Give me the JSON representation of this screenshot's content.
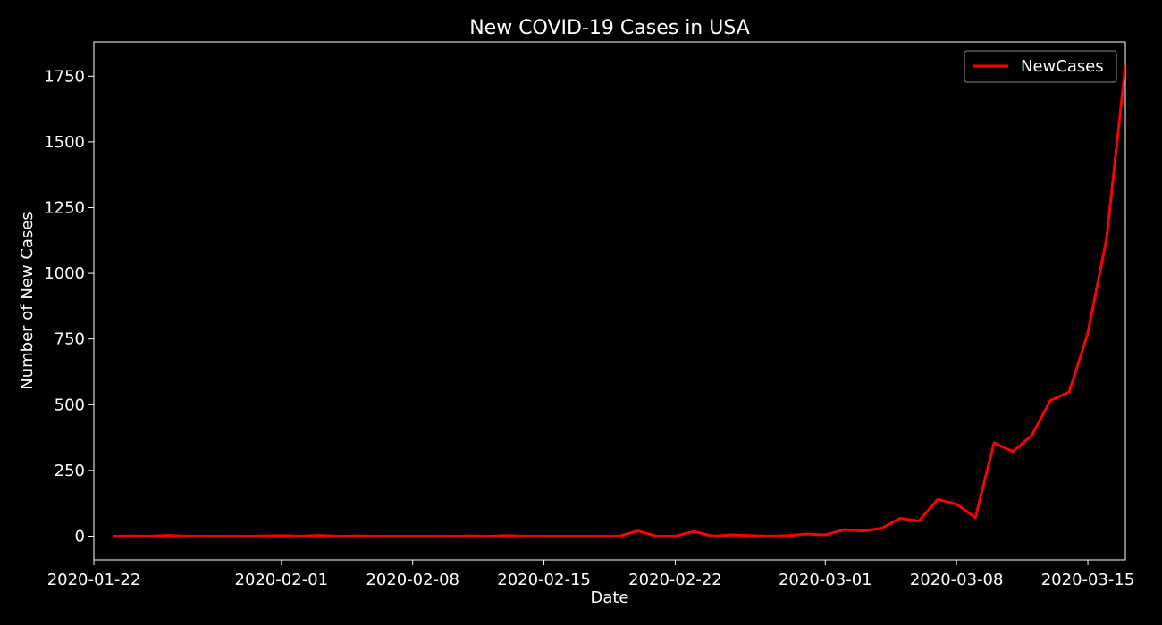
{
  "chart_data": {
    "type": "line",
    "title": "New COVID-19 Cases in USA",
    "xlabel": "Date",
    "ylabel": "Number of New Cases",
    "xlim": [
      "2020-01-22",
      "2020-03-17"
    ],
    "ylim": [
      -90,
      1880
    ],
    "x_ticks": [
      "2020-01-22",
      "2020-02-01",
      "2020-02-08",
      "2020-02-15",
      "2020-02-22",
      "2020-03-01",
      "2020-03-08",
      "2020-03-15"
    ],
    "y_ticks": [
      0,
      250,
      500,
      750,
      1000,
      1250,
      1500,
      1750
    ],
    "legend_position": "top-right",
    "grid": false,
    "series": [
      {
        "name": "NewCases",
        "color": "#ff0000",
        "x": [
          "2020-01-23",
          "2020-01-24",
          "2020-01-25",
          "2020-01-26",
          "2020-01-27",
          "2020-01-28",
          "2020-01-29",
          "2020-01-30",
          "2020-01-31",
          "2020-02-01",
          "2020-02-02",
          "2020-02-03",
          "2020-02-04",
          "2020-02-05",
          "2020-02-06",
          "2020-02-07",
          "2020-02-08",
          "2020-02-09",
          "2020-02-10",
          "2020-02-11",
          "2020-02-12",
          "2020-02-13",
          "2020-02-14",
          "2020-02-15",
          "2020-02-16",
          "2020-02-17",
          "2020-02-18",
          "2020-02-19",
          "2020-02-20",
          "2020-02-21",
          "2020-02-22",
          "2020-02-23",
          "2020-02-24",
          "2020-02-25",
          "2020-02-26",
          "2020-02-27",
          "2020-02-28",
          "2020-02-29",
          "2020-03-01",
          "2020-03-02",
          "2020-03-03",
          "2020-03-04",
          "2020-03-05",
          "2020-03-06",
          "2020-03-07",
          "2020-03-08",
          "2020-03-09",
          "2020-03-10",
          "2020-03-11",
          "2020-03-12",
          "2020-03-13",
          "2020-03-14",
          "2020-03-15",
          "2020-03-16",
          "2020-03-17"
        ],
        "values": [
          0,
          1,
          0,
          3,
          0,
          0,
          0,
          0,
          1,
          2,
          0,
          3,
          0,
          1,
          0,
          0,
          0,
          0,
          0,
          1,
          0,
          2,
          0,
          0,
          0,
          0,
          0,
          0,
          20,
          0,
          0,
          18,
          0,
          5,
          2,
          0,
          2,
          8,
          5,
          25,
          20,
          30,
          68,
          58,
          140,
          122,
          70,
          355,
          322,
          382,
          516,
          548,
          772,
          1133,
          1789
        ]
      }
    ]
  }
}
